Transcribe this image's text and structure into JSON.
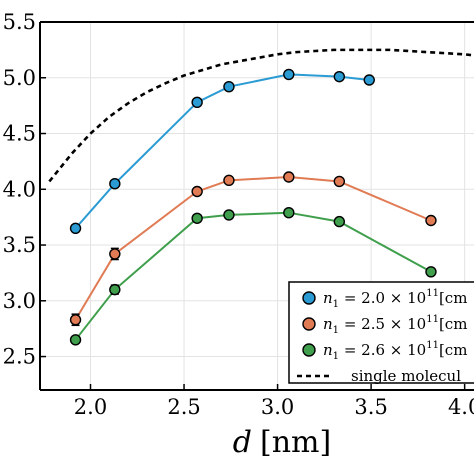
{
  "chart_data": {
    "type": "line",
    "xlabel": {
      "symbol": "d",
      "unit": "[nm]"
    },
    "ylabel": "",
    "xlim": [
      1.73,
      4.05
    ],
    "ylim": [
      2.2,
      5.5
    ],
    "x_ticks": [
      "2.0",
      "2.5",
      "3.0",
      "3.5",
      "4.0"
    ],
    "x_tick_values": [
      2.0,
      2.5,
      3.0,
      3.5,
      4.0
    ],
    "y_ticks": [
      "2.5",
      "3.0",
      "3.5",
      "4.0",
      "4.5",
      "5.0",
      "5.5"
    ],
    "y_tick_values": [
      2.5,
      3.0,
      3.5,
      4.0,
      4.5,
      5.0,
      5.5
    ],
    "grid": true,
    "legend_position": "bottom-right",
    "series": [
      {
        "name": "n_1 = 2.0 × 10^11 [cm",
        "legend": {
          "var": "n",
          "sub": "1",
          "text": " = 2.0 × 10",
          "sup": "11",
          "rest": "[cm"
        },
        "color": "#2b9bd4",
        "x": [
          1.92,
          2.13,
          2.57,
          2.74,
          3.06,
          3.33,
          3.49
        ],
        "y": [
          3.65,
          4.05,
          4.78,
          4.92,
          5.03,
          5.01,
          4.98
        ],
        "err": [
          0.03,
          0.03,
          0.03,
          0.03,
          0.03,
          0.03,
          0.03
        ]
      },
      {
        "name": "n_1 = 2.5 × 10^11 [cm",
        "legend": {
          "var": "n",
          "sub": "1",
          "text": " = 2.5 × 10",
          "sup": "11",
          "rest": "[cm"
        },
        "color": "#e07b54",
        "x": [
          1.92,
          2.13,
          2.57,
          2.74,
          3.06,
          3.33,
          3.82
        ],
        "y": [
          2.83,
          3.42,
          3.98,
          4.08,
          4.11,
          4.07,
          3.72
        ],
        "err": [
          0.05,
          0.05,
          0.03,
          0.03,
          0.03,
          0.03,
          0.03
        ]
      },
      {
        "name": "n_1 = 2.6 × 10^11 [cm",
        "legend": {
          "var": "n",
          "sub": "1",
          "text": " = 2.6 × 10",
          "sup": "11",
          "rest": "[cm"
        },
        "color": "#3f9f4c",
        "x": [
          1.92,
          2.13,
          2.57,
          2.74,
          3.06,
          3.33,
          3.82
        ],
        "y": [
          2.65,
          3.1,
          3.74,
          3.77,
          3.79,
          3.71,
          3.26
        ],
        "err": [
          0.03,
          0.04,
          0.03,
          0.03,
          0.03,
          0.03,
          0.03
        ]
      },
      {
        "name": "single molecul",
        "legend": {
          "text": "single molecul"
        },
        "color": "#000000",
        "dashed": true,
        "x": [
          1.78,
          1.9,
          2.0,
          2.1,
          2.2,
          2.3,
          2.4,
          2.5,
          2.6,
          2.7,
          2.8,
          2.9,
          3.0,
          3.1,
          3.2,
          3.3,
          3.4,
          3.5,
          3.6,
          3.7,
          3.8,
          3.9,
          4.0,
          4.05
        ],
        "y": [
          4.07,
          4.32,
          4.5,
          4.65,
          4.77,
          4.87,
          4.95,
          5.02,
          5.07,
          5.12,
          5.15,
          5.18,
          5.21,
          5.23,
          5.24,
          5.25,
          5.25,
          5.25,
          5.25,
          5.24,
          5.23,
          5.22,
          5.21,
          5.2
        ]
      }
    ]
  }
}
